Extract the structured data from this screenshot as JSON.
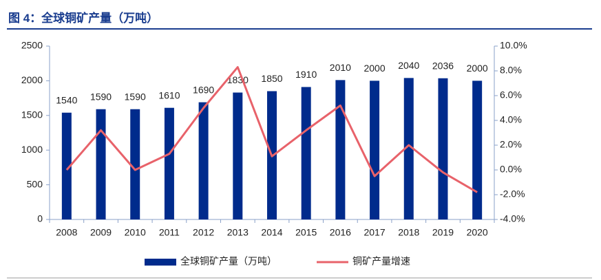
{
  "chart_data": {
    "type": "bar",
    "title": "图 4：全球铜矿产量（万吨）",
    "categories": [
      "2008",
      "2009",
      "2010",
      "2011",
      "2012",
      "2013",
      "2014",
      "2015",
      "2016",
      "2017",
      "2018",
      "2019",
      "2020"
    ],
    "series": [
      {
        "name": "全球铜矿产量（万吨）",
        "type": "bar",
        "color": "#002b8c",
        "values": [
          1540,
          1590,
          1590,
          1610,
          1690,
          1830,
          1850,
          1910,
          2010,
          2000,
          2040,
          2036,
          2000
        ]
      },
      {
        "name": "铜矿产量增速",
        "type": "line",
        "axis": "y2",
        "color": "#e8626a",
        "values": [
          0.0,
          3.2,
          0.0,
          1.3,
          5.0,
          8.3,
          1.1,
          3.2,
          5.2,
          -0.5,
          2.0,
          -0.2,
          -1.8
        ]
      }
    ],
    "ylim": [
      0,
      2500
    ],
    "yticks": [
      0,
      500,
      1000,
      1500,
      2000,
      2500
    ],
    "y2lim": [
      -4,
      10
    ],
    "y2ticks": [
      {
        "value": -4,
        "label": "-4.0%"
      },
      {
        "value": -2,
        "label": "-2.0%"
      },
      {
        "value": 0,
        "label": "0.0%"
      },
      {
        "value": 2,
        "label": "2.0%"
      },
      {
        "value": 4,
        "label": "4.0%"
      },
      {
        "value": 6,
        "label": "6.0%"
      },
      {
        "value": 8,
        "label": "8.0%"
      },
      {
        "value": 10,
        "label": "10.0%"
      }
    ],
    "legend": "bottom",
    "grid": false
  }
}
